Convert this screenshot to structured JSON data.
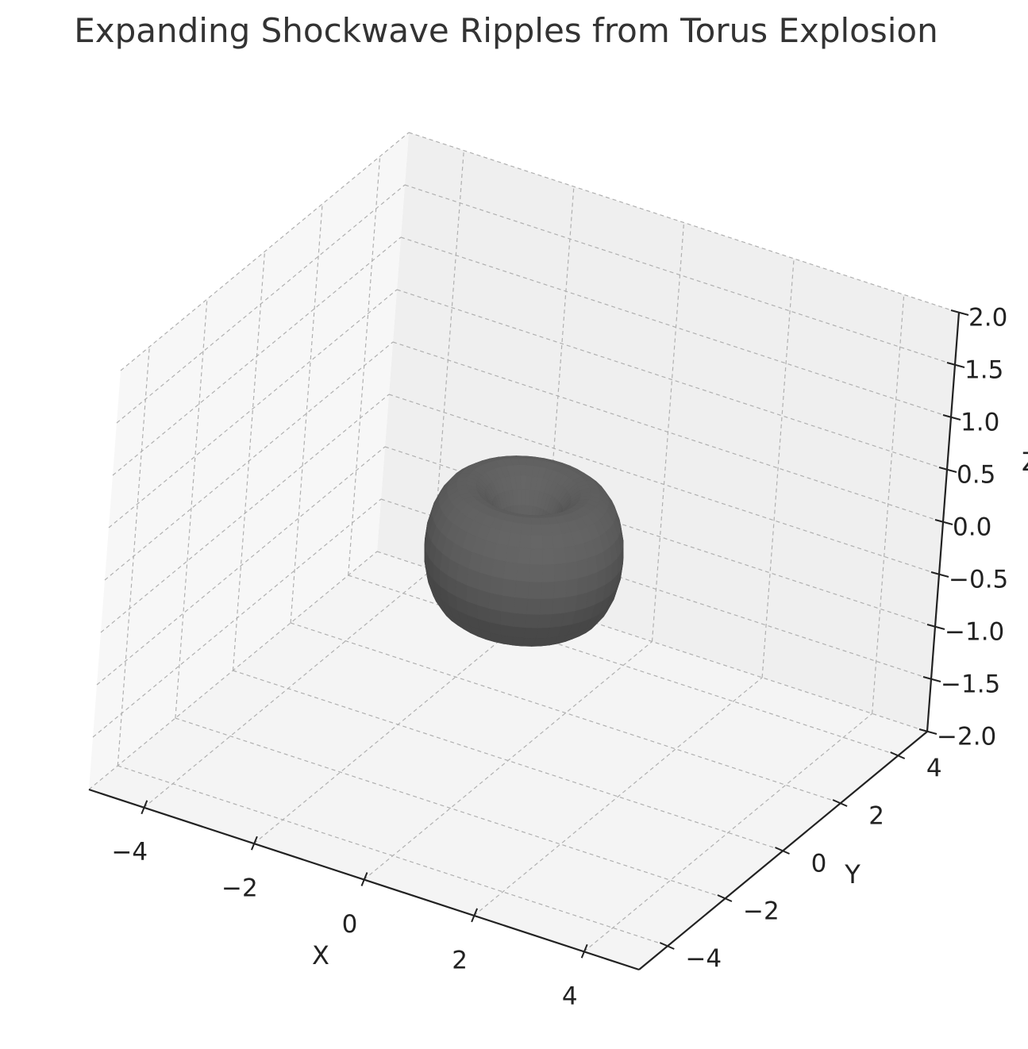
{
  "chart_data": {
    "type": "surface3d",
    "title": "Expanding Shockwave Ripples from Torus Explosion",
    "xlabel": "X",
    "ylabel": "Y",
    "zlabel": "Z",
    "xlim": [
      -5,
      5
    ],
    "ylim": [
      -5,
      5
    ],
    "zlim": [
      -2,
      2
    ],
    "x_ticks": [
      -4,
      -2,
      0,
      2,
      4
    ],
    "y_ticks": [
      -4,
      -2,
      0,
      2,
      4
    ],
    "z_ticks": [
      2.0,
      1.5,
      1.0,
      0.5,
      0.0,
      -0.5,
      -1.0,
      -1.5,
      -2.0
    ],
    "x_tick_labels": [
      "−4",
      "−2",
      "0",
      "2",
      "4"
    ],
    "y_tick_labels": [
      "−4",
      "−2",
      "0",
      "2",
      "4"
    ],
    "z_tick_labels": [
      "2.0",
      "1.5",
      "1.0",
      "0.5",
      "0.0",
      "−0.5",
      "−1.0",
      "−1.5",
      "−2.0"
    ],
    "grid": true,
    "torus": {
      "major_radius": 1.0,
      "minor_radius": 0.6,
      "center": [
        0,
        0,
        0
      ],
      "color": "#5f5f5f"
    },
    "pane_colors": {
      "back": "#efefef",
      "side": "#f7f7f7",
      "floor": "#f4f4f4"
    },
    "grid_color": "#b0b0b0"
  }
}
